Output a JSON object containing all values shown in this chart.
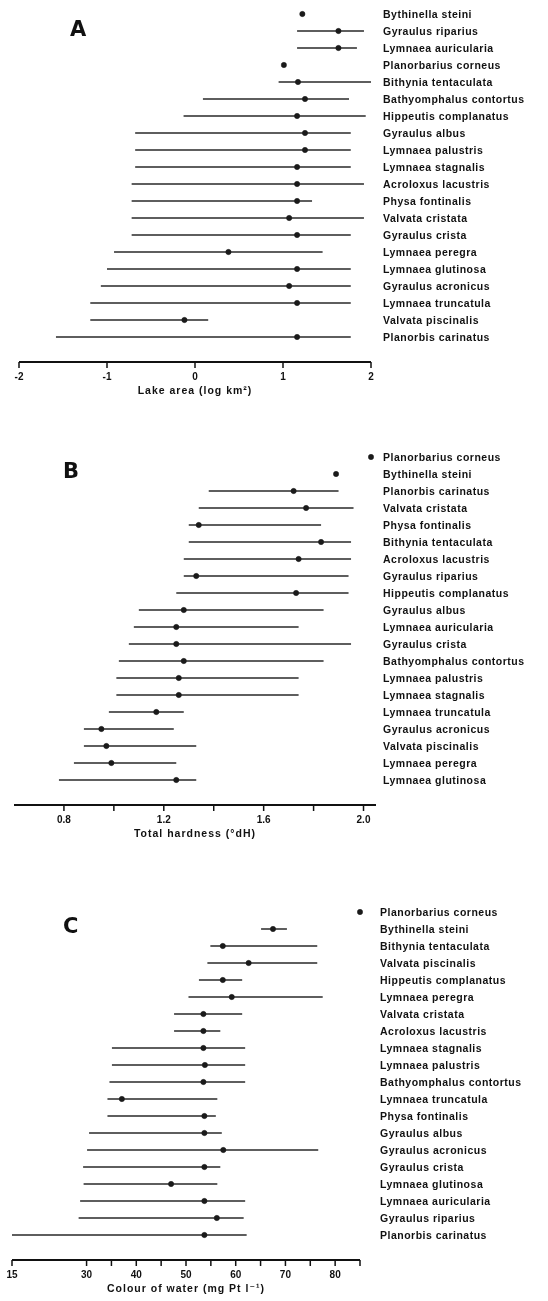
{
  "chart_data": [
    {
      "type": "bar",
      "orientation": "horizontal",
      "title": "A",
      "xlabel": "Lake area (log km²)",
      "categories": [
        "Bythinella steini",
        "Gyraulus riparius",
        "Lymnaea auricularia",
        "Planorbarius corneus",
        "Bithynia tentaculata",
        "Bathyomphalus contortus",
        "Hippeutis complanatus",
        "Gyraulus albus",
        "Lymnaea palustris",
        "Lymnaea stagnalis",
        "Acroloxus lacustris",
        "Physa fontinalis",
        "Valvata cristata",
        "Gyraulus crista",
        "Lymnaea peregra",
        "Lymnaea glutinosa",
        "Gyraulus acronicus",
        "Lymnaea truncatula",
        "Valvata piscinalis",
        "Planorbis carinatus"
      ],
      "series": [
        {
          "type": "bar",
          "color": "#1a1a1a",
          "base": [
            null,
            1.16,
            1.16,
            null,
            0.95,
            0.09,
            -0.13,
            -0.68,
            -0.68,
            -0.68,
            -0.72,
            -0.72,
            -0.72,
            -0.72,
            -0.92,
            -1.0,
            -1.07,
            -1.19,
            -1.19,
            -1.58
          ],
          "values": [
            null,
            0.76,
            0.68,
            null,
            1.05,
            1.66,
            2.07,
            2.45,
            2.45,
            2.45,
            2.64,
            2.05,
            2.64,
            2.49,
            2.37,
            2.77,
            2.84,
            2.96,
            1.34,
            3.35
          ]
        },
        {
          "type": "scatter",
          "color": "#1a1a1a",
          "marker": "circle",
          "x": [
            "Bythinella steini",
            "Gyraulus riparius",
            "Lymnaea auricularia",
            "Planorbarius corneus",
            "Bithynia tentaculata",
            "Bathyomphalus contortus",
            "Hippeutis complanatus",
            "Gyraulus albus",
            "Lymnaea palustris",
            "Lymnaea stagnalis",
            "Acroloxus lacustris",
            "Physa fontinalis",
            "Valvata cristata",
            "Gyraulus crista",
            "Lymnaea peregra",
            "Lymnaea glutinosa",
            "Gyraulus acronicus",
            "Lymnaea truncatula",
            "Valvata piscinalis",
            "Planorbis carinatus"
          ],
          "values": [
            1.22,
            1.63,
            1.63,
            1.01,
            1.17,
            1.25,
            1.16,
            1.25,
            1.25,
            1.16,
            1.16,
            1.16,
            1.07,
            1.16,
            0.38,
            1.16,
            1.07,
            1.16,
            -0.12,
            1.16
          ]
        }
      ],
      "xlim": [
        -2,
        2
      ],
      "xticks": [
        -2,
        -1,
        0,
        1,
        2
      ]
    },
    {
      "type": "bar",
      "orientation": "horizontal",
      "title": "B",
      "xlabel": "Total hardness (°dH)",
      "categories": [
        "Planorbarius corneus",
        "Bythinella steini",
        "Planorbis carinatus",
        "Valvata cristata",
        "Physa fontinalis",
        "Bithynia tentaculata",
        "Acroloxus lacustris",
        "Gyraulus riparius",
        "Hippeutis complanatus",
        "Gyraulus albus",
        "Lymnaea auricularia",
        "Gyraulus crista",
        "Bathyomphalus contortus",
        "Lymnaea palustris",
        "Lymnaea stagnalis",
        "Lymnaea truncatula",
        "Gyraulus acronicus",
        "Valvata piscinalis",
        "Lymnaea peregra",
        "Lymnaea glutinosa"
      ],
      "series": [
        {
          "type": "bar",
          "color": "#1a1a1a",
          "base": [
            null,
            null,
            1.38,
            1.34,
            1.3,
            1.3,
            1.28,
            1.28,
            1.25,
            1.1,
            1.08,
            1.06,
            1.02,
            1.01,
            1.01,
            0.98,
            0.88,
            0.88,
            0.84,
            0.78
          ],
          "values": [
            null,
            null,
            0.52,
            0.62,
            0.53,
            0.65,
            0.67,
            0.66,
            0.69,
            0.74,
            0.66,
            0.89,
            0.82,
            0.73,
            0.73,
            0.3,
            0.36,
            0.45,
            0.41,
            0.55
          ]
        },
        {
          "type": "scatter",
          "color": "#1a1a1a",
          "marker": "circle",
          "x": [
            "Planorbarius corneus",
            "Bythinella steini",
            "Planorbis carinatus",
            "Valvata cristata",
            "Physa fontinalis",
            "Bithynia tentaculata",
            "Acroloxus lacustris",
            "Gyraulus riparius",
            "Hippeutis complanatus",
            "Gyraulus albus",
            "Lymnaea auricularia",
            "Gyraulus crista",
            "Bathyomphalus contortus",
            "Lymnaea palustris",
            "Lymnaea stagnalis",
            "Lymnaea truncatula",
            "Gyraulus acronicus",
            "Valvata piscinalis",
            "Lymnaea peregra",
            "Lymnaea glutinosa"
          ],
          "values": [
            2.03,
            1.89,
            1.72,
            1.77,
            1.34,
            1.83,
            1.74,
            1.33,
            1.73,
            1.28,
            1.25,
            1.25,
            1.28,
            1.26,
            1.26,
            1.17,
            0.95,
            0.97,
            0.99,
            1.25
          ]
        }
      ],
      "xlim": [
        0.6,
        2.05
      ],
      "xticks": [
        0.8,
        {
          "value": 1.0,
          "label": null
        },
        1.2,
        {
          "value": 1.4,
          "label": null
        },
        1.6,
        {
          "value": 1.8,
          "label": null
        },
        {
          "value": 2,
          "label": "2.0"
        }
      ]
    },
    {
      "type": "bar",
      "orientation": "horizontal",
      "title": "C",
      "xlabel": "Colour of water (mg Pt l⁻¹)",
      "categories": [
        "Planorbarius corneus",
        "Bythinella steini",
        "Bithynia tentaculata",
        "Valvata piscinalis",
        "Hippeutis complanatus",
        "Lymnaea peregra",
        "Valvata cristata",
        "Acroloxus lacustris",
        "Lymnaea stagnalis",
        "Lymnaea palustris",
        "Bathyomphalus contortus",
        "Lymnaea truncatula",
        "Physa fontinalis",
        "Gyraulus albus",
        "Gyraulus acronicus",
        "Gyraulus crista",
        "Lymnaea glutinosa",
        "Lymnaea auricularia",
        "Gyraulus riparius",
        "Planorbis carinatus"
      ],
      "series": [
        {
          "type": "bar",
          "color": "#1a1a1a",
          "base": [
            null,
            65.1,
            54.9,
            54.3,
            52.6,
            50.5,
            47.6,
            47.6,
            35.1,
            35.1,
            34.6,
            34.2,
            34.2,
            30.5,
            30.1,
            29.3,
            29.4,
            28.7,
            28.4,
            15
          ],
          "values": [
            null,
            5.2,
            21.5,
            22.1,
            8.7,
            27.0,
            13.7,
            9.3,
            26.8,
            26.8,
            27.3,
            22.1,
            21.8,
            26.7,
            46.5,
            27.6,
            26.9,
            33.2,
            33.2,
            47.2
          ]
        },
        {
          "type": "scatter",
          "color": "#1a1a1a",
          "marker": "circle",
          "x": [
            "Planorbarius corneus",
            "Bythinella steini",
            "Bithynia tentaculata",
            "Valvata piscinalis",
            "Hippeutis complanatus",
            "Lymnaea peregra",
            "Valvata cristata",
            "Acroloxus lacustris",
            "Lymnaea stagnalis",
            "Lymnaea palustris",
            "Bathyomphalus contortus",
            "Lymnaea truncatula",
            "Physa fontinalis",
            "Gyraulus albus",
            "Gyraulus acronicus",
            "Gyraulus crista",
            "Lymnaea glutinosa",
            "Lymnaea auricularia",
            "Gyraulus riparius",
            "Planorbis carinatus"
          ],
          "values": [
            85,
            67.5,
            57.4,
            62.6,
            57.4,
            59.2,
            53.5,
            53.5,
            53.5,
            53.8,
            53.5,
            37.1,
            53.7,
            53.7,
            57.5,
            53.7,
            47.0,
            53.7,
            56.2,
            53.7
          ]
        }
      ],
      "xlim": [
        15,
        85
      ],
      "xticks": [
        15,
        30,
        {
          "value": 35,
          "label": null
        },
        40,
        {
          "value": 45,
          "label": null
        },
        50,
        {
          "value": 55,
          "label": null
        },
        60,
        {
          "value": 65,
          "label": null
        },
        70,
        {
          "value": 75,
          "label": null
        },
        80,
        {
          "value": 85,
          "label": null
        }
      ]
    }
  ]
}
